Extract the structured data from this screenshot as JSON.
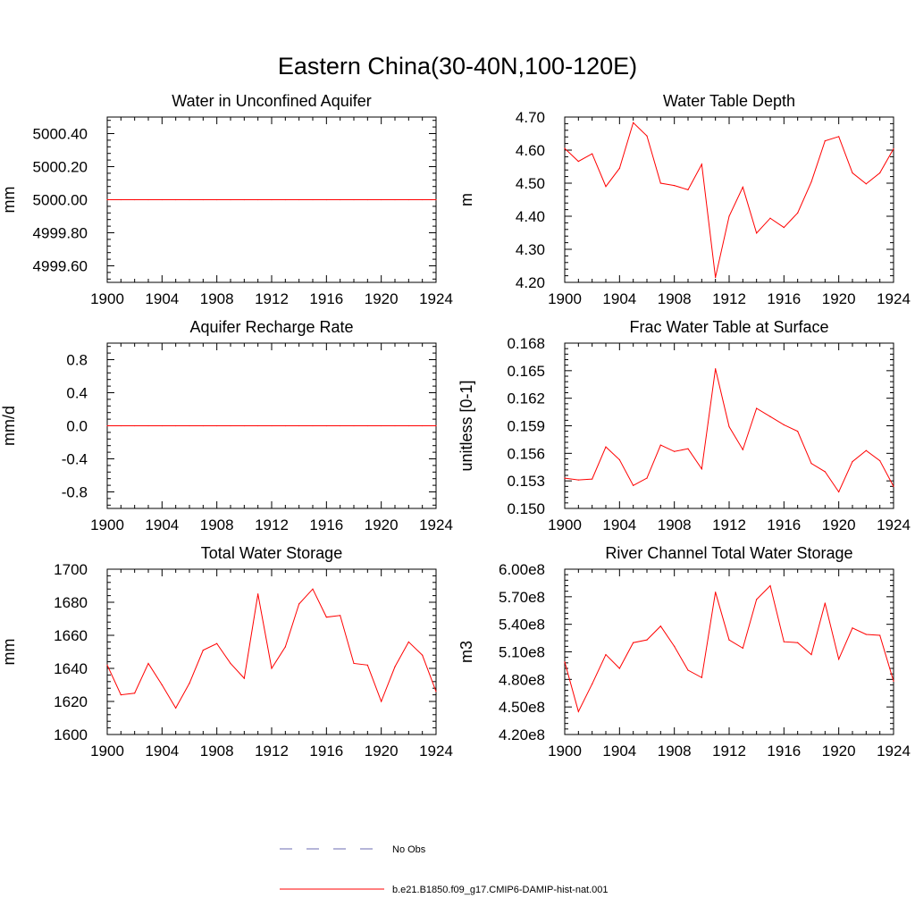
{
  "figure": {
    "title": "Eastern China(30-40N,100-120E)"
  },
  "legend": {
    "entries": [
      {
        "label": "No Obs",
        "color": "#6b6bb3",
        "style": "dashed"
      },
      {
        "label": "b.e21.B1850.f09_g17.CMIP6-DAMIP-hist-nat.001",
        "color": "#ff0000",
        "style": "solid"
      }
    ]
  },
  "chart_data": [
    {
      "type": "line",
      "title": "Water in Unconfined Aquifer",
      "ylabel": "mm",
      "xlim": [
        1900,
        1924
      ],
      "ylim": [
        4999.5,
        5000.5
      ],
      "xticks": [
        1900,
        1904,
        1908,
        1912,
        1916,
        1920,
        1924
      ],
      "yticks": [
        4999.6,
        4999.8,
        5000.0,
        5000.2,
        5000.4
      ],
      "ytick_labels": [
        "4999.60",
        "4999.80",
        "5000.00",
        "5000.20",
        "5000.40"
      ],
      "x": [
        1900,
        1901,
        1902,
        1903,
        1904,
        1905,
        1906,
        1907,
        1908,
        1909,
        1910,
        1911,
        1912,
        1913,
        1914,
        1915,
        1916,
        1917,
        1918,
        1919,
        1920,
        1921,
        1922,
        1923,
        1924
      ],
      "series": [
        {
          "color": "#ff0000",
          "values": [
            5000,
            5000,
            5000,
            5000,
            5000,
            5000,
            5000,
            5000,
            5000,
            5000,
            5000,
            5000,
            5000,
            5000,
            5000,
            5000,
            5000,
            5000,
            5000,
            5000,
            5000,
            5000,
            5000,
            5000,
            5000
          ]
        }
      ]
    },
    {
      "type": "line",
      "title": "Water Table Depth",
      "ylabel": "m",
      "xlim": [
        1900,
        1924
      ],
      "ylim": [
        4.2,
        4.7
      ],
      "xticks": [
        1900,
        1904,
        1908,
        1912,
        1916,
        1920,
        1924
      ],
      "yticks": [
        4.2,
        4.3,
        4.4,
        4.5,
        4.6,
        4.7
      ],
      "ytick_labels": [
        "4.20",
        "4.30",
        "4.40",
        "4.50",
        "4.60",
        "4.70"
      ],
      "x": [
        1900,
        1901,
        1902,
        1903,
        1904,
        1905,
        1906,
        1907,
        1908,
        1909,
        1910,
        1911,
        1912,
        1913,
        1914,
        1915,
        1916,
        1917,
        1918,
        1919,
        1920,
        1921,
        1922,
        1923,
        1924
      ],
      "series": [
        {
          "color": "#ff0000",
          "values": [
            4.605,
            4.566,
            4.589,
            4.49,
            4.545,
            4.683,
            4.643,
            4.5,
            4.493,
            4.48,
            4.557,
            4.215,
            4.4,
            4.488,
            4.349,
            4.394,
            4.366,
            4.41,
            4.504,
            4.628,
            4.641,
            4.531,
            4.498,
            4.531,
            4.604
          ]
        }
      ]
    },
    {
      "type": "line",
      "title": "Aquifer Recharge Rate",
      "ylabel": "mm/d",
      "xlim": [
        1900,
        1924
      ],
      "ylim": [
        -1.0,
        1.0
      ],
      "xticks": [
        1900,
        1904,
        1908,
        1912,
        1916,
        1920,
        1924
      ],
      "yticks": [
        -0.8,
        -0.4,
        0.0,
        0.4,
        0.8
      ],
      "ytick_labels": [
        "-0.8",
        "-0.4",
        "0.0",
        "0.4",
        "0.8"
      ],
      "x": [
        1900,
        1901,
        1902,
        1903,
        1904,
        1905,
        1906,
        1907,
        1908,
        1909,
        1910,
        1911,
        1912,
        1913,
        1914,
        1915,
        1916,
        1917,
        1918,
        1919,
        1920,
        1921,
        1922,
        1923,
        1924
      ],
      "series": [
        {
          "color": "#ff0000",
          "values": [
            0,
            0,
            0,
            0,
            0,
            0,
            0,
            0,
            0,
            0,
            0,
            0,
            0,
            0,
            0,
            0,
            0,
            0,
            0,
            0,
            0,
            0,
            0,
            0,
            0
          ]
        }
      ]
    },
    {
      "type": "line",
      "title": "Frac Water Table at Surface",
      "ylabel": "unitless [0-1]",
      "xlim": [
        1900,
        1924
      ],
      "ylim": [
        0.15,
        0.168
      ],
      "xticks": [
        1900,
        1904,
        1908,
        1912,
        1916,
        1920,
        1924
      ],
      "yticks": [
        0.15,
        0.153,
        0.156,
        0.159,
        0.162,
        0.165,
        0.168
      ],
      "ytick_labels": [
        "0.150",
        "0.153",
        "0.156",
        "0.159",
        "0.162",
        "0.165",
        "0.168"
      ],
      "x": [
        1900,
        1901,
        1902,
        1903,
        1904,
        1905,
        1906,
        1907,
        1908,
        1909,
        1910,
        1911,
        1912,
        1913,
        1914,
        1915,
        1916,
        1917,
        1918,
        1919,
        1920,
        1921,
        1922,
        1923,
        1924
      ],
      "series": [
        {
          "color": "#ff0000",
          "values": [
            0.1533,
            0.1531,
            0.1532,
            0.1567,
            0.1553,
            0.1525,
            0.1533,
            0.1569,
            0.1562,
            0.1565,
            0.1543,
            0.1652,
            0.1589,
            0.1564,
            0.1609,
            0.16,
            0.1591,
            0.1584,
            0.1549,
            0.154,
            0.1518,
            0.1551,
            0.1563,
            0.1552,
            0.1524
          ]
        }
      ]
    },
    {
      "type": "line",
      "title": "Total Water Storage",
      "ylabel": "mm",
      "xlim": [
        1900,
        1924
      ],
      "ylim": [
        1600,
        1700
      ],
      "xticks": [
        1900,
        1904,
        1908,
        1912,
        1916,
        1920,
        1924
      ],
      "yticks": [
        1600,
        1620,
        1640,
        1660,
        1680,
        1700
      ],
      "ytick_labels": [
        "1600",
        "1620",
        "1640",
        "1660",
        "1680",
        "1700"
      ],
      "x": [
        1900,
        1901,
        1902,
        1903,
        1904,
        1905,
        1906,
        1907,
        1908,
        1909,
        1910,
        1911,
        1912,
        1913,
        1914,
        1915,
        1916,
        1917,
        1918,
        1919,
        1920,
        1921,
        1922,
        1923,
        1924
      ],
      "series": [
        {
          "color": "#ff0000",
          "values": [
            1642,
            1624,
            1625,
            1643,
            1630,
            1616,
            1631,
            1651,
            1655,
            1643,
            1634,
            1685,
            1640,
            1653,
            1679,
            1688,
            1671,
            1672,
            1643,
            1642,
            1620,
            1641,
            1656,
            1648,
            1626
          ]
        }
      ]
    },
    {
      "type": "line",
      "title": "River Channel Total Water Storage",
      "ylabel": "m3",
      "xlim": [
        1900,
        1924
      ],
      "ylim": [
        420000000,
        600000000
      ],
      "xticks": [
        1900,
        1904,
        1908,
        1912,
        1916,
        1920,
        1924
      ],
      "yticks": [
        420000000,
        450000000,
        480000000,
        510000000,
        540000000,
        570000000,
        600000000
      ],
      "ytick_labels": [
        "4.20e8",
        "4.50e8",
        "4.80e8",
        "5.10e8",
        "5.40e8",
        "5.70e8",
        "6.00e8"
      ],
      "x": [
        1900,
        1901,
        1902,
        1903,
        1904,
        1905,
        1906,
        1907,
        1908,
        1909,
        1910,
        1911,
        1912,
        1913,
        1914,
        1915,
        1916,
        1917,
        1918,
        1919,
        1920,
        1921,
        1922,
        1923,
        1924
      ],
      "series": [
        {
          "color": "#ff0000",
          "values": [
            499000000,
            445000000,
            475000000,
            507000000,
            492000000,
            520000000,
            523000000,
            538000000,
            516000000,
            490000000,
            482000000,
            575000000,
            523000000,
            514000000,
            567000000,
            582000000,
            521000000,
            520000000,
            507000000,
            563000000,
            502000000,
            536000000,
            529000000,
            528000000,
            478000000
          ]
        }
      ]
    }
  ]
}
